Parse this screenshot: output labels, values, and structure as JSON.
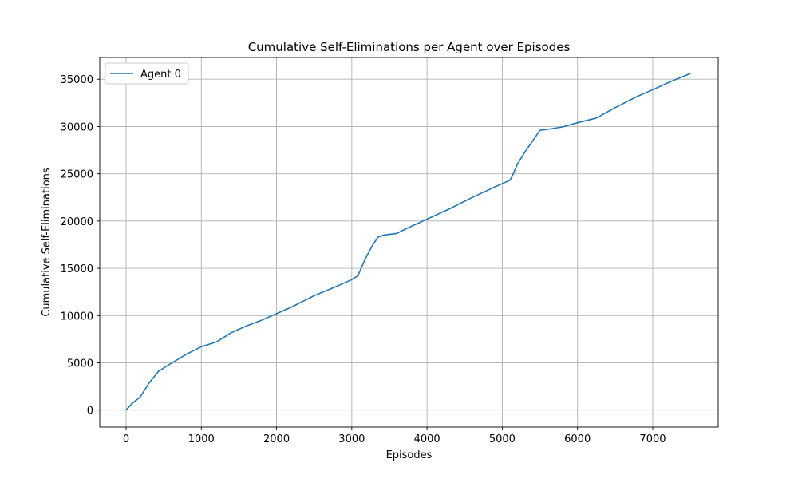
{
  "chart_data": {
    "type": "line",
    "title": "Cumulative Self-Eliminations per Agent over Episodes",
    "xlabel": "Episodes",
    "ylabel": "Cumulative Self-Eliminations",
    "xlim": [
      -350,
      7870
    ],
    "ylim": [
      -1800,
      37300
    ],
    "xticks": [
      0,
      1000,
      2000,
      3000,
      4000,
      5000,
      6000,
      7000
    ],
    "yticks": [
      0,
      5000,
      10000,
      15000,
      20000,
      25000,
      30000,
      35000
    ],
    "grid": true,
    "legend_position": "upper left",
    "series": [
      {
        "name": "Agent 0",
        "color": "#1f77b4",
        "x": [
          0,
          80,
          190,
          300,
          430,
          550,
          800,
          1000,
          1200,
          1400,
          1600,
          1800,
          2000,
          2200,
          2500,
          2800,
          3000,
          3080,
          3180,
          3280,
          3350,
          3420,
          3600,
          3700,
          4000,
          4300,
          4600,
          4900,
          5100,
          5130,
          5200,
          5300,
          5380,
          5450,
          5500,
          5600,
          5800,
          6000,
          6250,
          6500,
          6800,
          7000,
          7250,
          7500
        ],
        "y": [
          0,
          700,
          1400,
          2800,
          4100,
          4700,
          5900,
          6700,
          7200,
          8200,
          8900,
          9500,
          10200,
          10900,
          12100,
          13100,
          13800,
          14200,
          16000,
          17500,
          18300,
          18500,
          18700,
          19100,
          20200,
          21300,
          22500,
          23600,
          24300,
          24700,
          26000,
          27300,
          28200,
          29000,
          29600,
          29700,
          29950,
          30400,
          30900,
          32000,
          33200,
          33900,
          34800,
          35600
        ]
      }
    ]
  }
}
